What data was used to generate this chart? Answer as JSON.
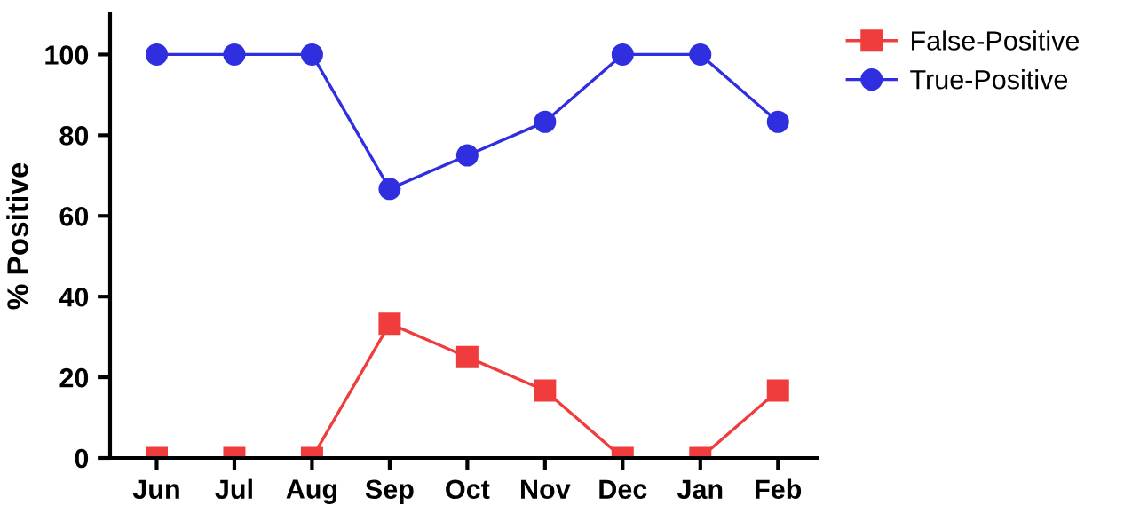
{
  "chart_data": {
    "type": "line",
    "ylabel": "% Positive",
    "categories": [
      "Jun",
      "Jul",
      "Aug",
      "Sep",
      "Oct",
      "Nov",
      "Dec",
      "Jan",
      "Feb"
    ],
    "series": [
      {
        "name": "False-Positive",
        "color": "#f03c3c",
        "marker": "square",
        "values": [
          0,
          0,
          0,
          33.3,
          25,
          16.7,
          0,
          0,
          16.7
        ]
      },
      {
        "name": "True-Positive",
        "color": "#2f2fe0",
        "marker": "circle",
        "values": [
          100,
          100,
          100,
          66.7,
          75,
          83.3,
          100,
          100,
          83.3
        ]
      }
    ],
    "ylim": [
      0,
      110
    ],
    "yticks": [
      0,
      20,
      40,
      60,
      80,
      100
    ],
    "grid": false,
    "legend": "top right",
    "line_style": "solid"
  }
}
